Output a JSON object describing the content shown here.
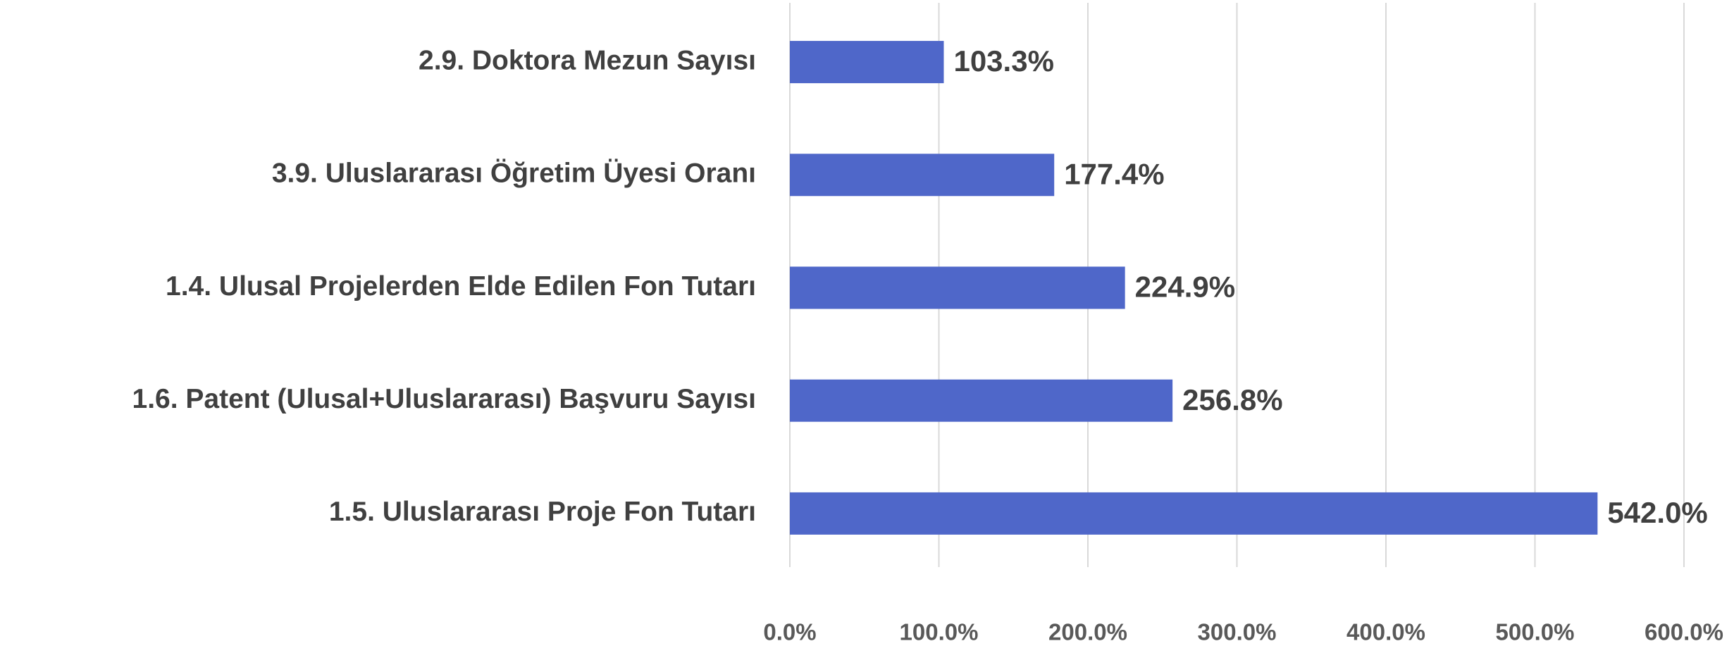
{
  "chart_data": {
    "type": "barh",
    "categories": [
      "2.9. Doktora Mezun Sayısı",
      "3.9. Uluslararası Öğretim Üyesi Oranı",
      "1.4. Ulusal Projelerden Elde Edilen Fon Tutarı",
      "1.6. Patent (Ulusal+Uluslararası) Başvuru Sayısı",
      "1.5. Uluslararası Proje Fon Tutarı"
    ],
    "values": [
      103.3,
      177.4,
      224.9,
      256.8,
      542.0
    ],
    "value_labels": [
      "103.3%",
      "177.4%",
      "224.9%",
      "256.8%",
      "542.0%"
    ],
    "color": "#4f67c9",
    "xlim": [
      0,
      600
    ],
    "xticks": [
      {
        "value": 0,
        "label": "0.0%"
      },
      {
        "value": 100,
        "label": "100.0%"
      },
      {
        "value": 200,
        "label": "200.0%"
      },
      {
        "value": 300,
        "label": "300.0%"
      },
      {
        "value": 400,
        "label": "400.0%"
      },
      {
        "value": 500,
        "label": "500.0%"
      },
      {
        "value": 600,
        "label": "600.0%"
      }
    ],
    "grid": true
  }
}
